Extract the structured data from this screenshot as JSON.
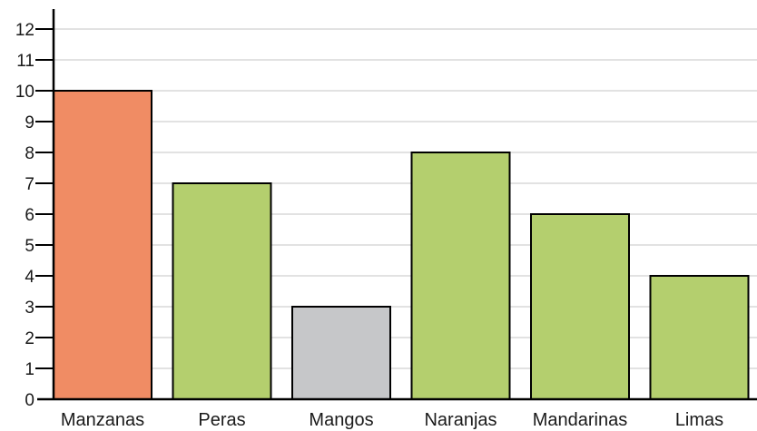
{
  "chart_data": {
    "type": "bar",
    "categories": [
      "Manzanas",
      "Peras",
      "Mangos",
      "Naranjas",
      "Mandarinas",
      "Limas"
    ],
    "values": [
      10,
      7,
      3,
      8,
      6,
      4
    ],
    "ylim": [
      0,
      12
    ],
    "yticks": [
      "0",
      "1",
      "2",
      "3",
      "4",
      "5",
      "6",
      "7",
      "8",
      "9",
      "10",
      "11",
      "12"
    ],
    "grid": true,
    "bar_colors": [
      "#f08c64",
      "#b4cf6e",
      "#c6c7c9",
      "#b4cf6e",
      "#b4cf6e",
      "#b4cf6e"
    ],
    "gridline_color": "#d9d9d9",
    "axis_color": "#000000"
  }
}
